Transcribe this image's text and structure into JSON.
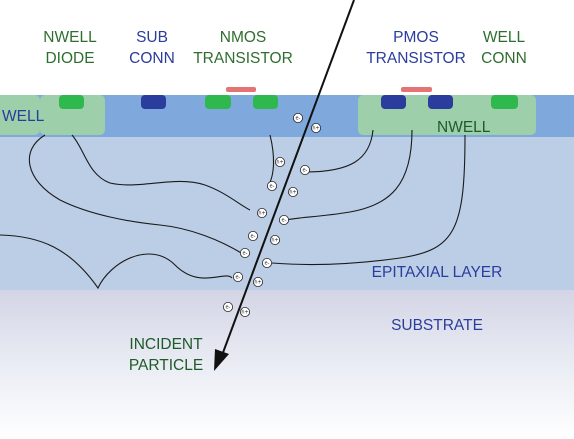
{
  "labels": {
    "nwell_diode": [
      "NWELL",
      "DIODE"
    ],
    "sub_conn": [
      "SUB",
      "CONN"
    ],
    "nmos": [
      "NMOS",
      "TRANSISTOR"
    ],
    "pmos": [
      "PMOS",
      "TRANSISTOR"
    ],
    "well_conn": [
      "WELL",
      "CONN"
    ],
    "nwell_left": "WELL",
    "nwell_right": "NWELL",
    "epitaxial": "EPITAXIAL LAYER",
    "substrate": "SUBSTRATE",
    "incident": [
      "INCIDENT",
      "PARTICLE"
    ]
  },
  "carriers": {
    "electron": "e-",
    "hole": "h+"
  },
  "colors": {
    "label_green": "#2f6e2f",
    "label_blue": "#2a3d9c",
    "nwell_region": "#9ccfaa",
    "pwell_region": "#7fa9dc",
    "epitaxial": "#bccde6",
    "substrate_top": "#d6d8e8",
    "n_plus": "#2fb84d",
    "p_plus": "#2a3d9c",
    "gate": "#e57373",
    "trajectory": "#111111"
  }
}
